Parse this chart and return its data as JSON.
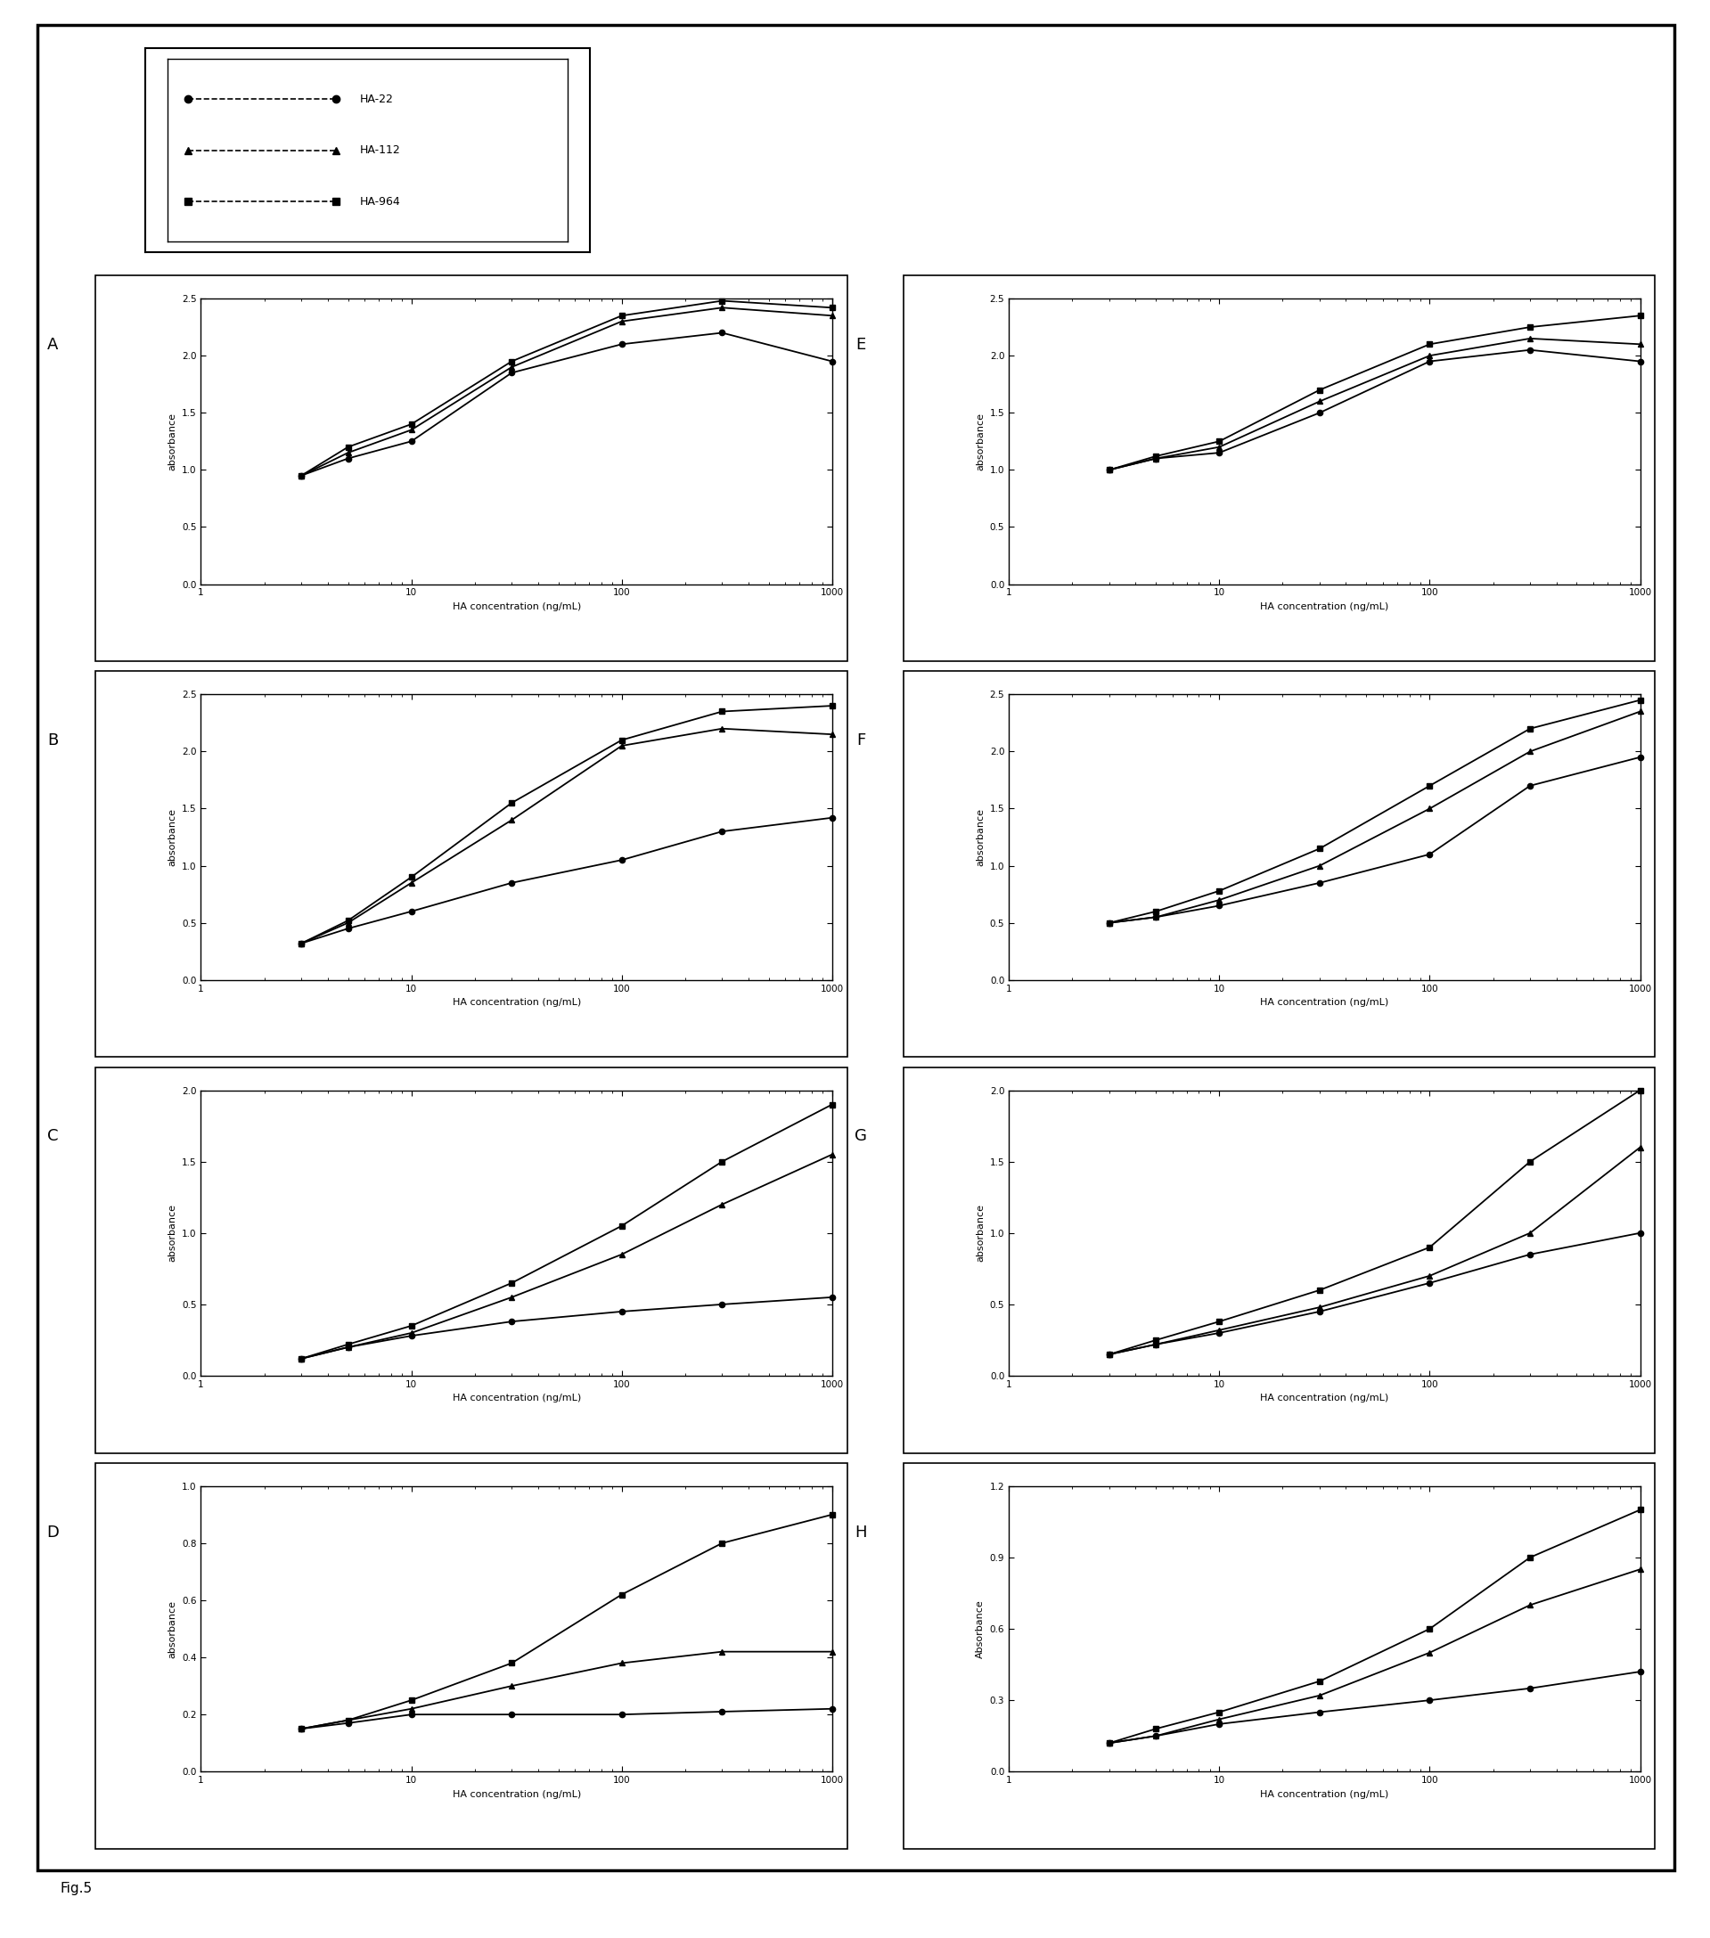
{
  "x": [
    3,
    5,
    10,
    30,
    100,
    300,
    1000
  ],
  "panels": {
    "A": {
      "HA22": [
        0.95,
        1.1,
        1.25,
        1.85,
        2.1,
        2.2,
        1.95
      ],
      "HA112": [
        0.95,
        1.15,
        1.35,
        1.9,
        2.3,
        2.42,
        2.35
      ],
      "HA964": [
        0.95,
        1.2,
        1.4,
        1.95,
        2.35,
        2.48,
        2.42
      ],
      "ylim": [
        0.0,
        2.5
      ],
      "yticks": [
        0.0,
        0.5,
        1.0,
        1.5,
        2.0,
        2.5
      ],
      "ylabel": "absorbance"
    },
    "B": {
      "HA22": [
        0.32,
        0.45,
        0.6,
        0.85,
        1.05,
        1.3,
        1.42
      ],
      "HA112": [
        0.32,
        0.5,
        0.85,
        1.4,
        2.05,
        2.2,
        2.15
      ],
      "HA964": [
        0.32,
        0.52,
        0.9,
        1.55,
        2.1,
        2.35,
        2.4
      ],
      "ylim": [
        0.0,
        2.5
      ],
      "yticks": [
        0.0,
        0.5,
        1.0,
        1.5,
        2.0,
        2.5
      ],
      "ylabel": "absorbance"
    },
    "C": {
      "HA22": [
        0.12,
        0.2,
        0.28,
        0.38,
        0.45,
        0.5,
        0.55
      ],
      "HA112": [
        0.12,
        0.2,
        0.3,
        0.55,
        0.85,
        1.2,
        1.55
      ],
      "HA964": [
        0.12,
        0.22,
        0.35,
        0.65,
        1.05,
        1.5,
        1.9
      ],
      "ylim": [
        0.0,
        2.0
      ],
      "yticks": [
        0.0,
        0.5,
        1.0,
        1.5,
        2.0
      ],
      "ylabel": "absorbance"
    },
    "D": {
      "HA22": [
        0.15,
        0.17,
        0.2,
        0.2,
        0.2,
        0.21,
        0.22
      ],
      "HA112": [
        0.15,
        0.18,
        0.22,
        0.3,
        0.38,
        0.42,
        0.42
      ],
      "HA964": [
        0.15,
        0.18,
        0.25,
        0.38,
        0.62,
        0.8,
        0.9
      ],
      "ylim": [
        0.0,
        1.0
      ],
      "yticks": [
        0.0,
        0.2,
        0.4,
        0.6,
        0.8,
        1.0
      ],
      "ylabel": "absorbance"
    },
    "E": {
      "HA22": [
        1.0,
        1.1,
        1.15,
        1.5,
        1.95,
        2.05,
        1.95
      ],
      "HA112": [
        1.0,
        1.1,
        1.2,
        1.6,
        2.0,
        2.15,
        2.1
      ],
      "HA964": [
        1.0,
        1.12,
        1.25,
        1.7,
        2.1,
        2.25,
        2.35
      ],
      "ylim": [
        0.0,
        2.5
      ],
      "yticks": [
        0.0,
        0.5,
        1.0,
        1.5,
        2.0,
        2.5
      ],
      "ylabel": "absorbance"
    },
    "F": {
      "HA22": [
        0.5,
        0.55,
        0.65,
        0.85,
        1.1,
        1.7,
        1.95
      ],
      "HA112": [
        0.5,
        0.55,
        0.7,
        1.0,
        1.5,
        2.0,
        2.35
      ],
      "HA964": [
        0.5,
        0.6,
        0.78,
        1.15,
        1.7,
        2.2,
        2.45
      ],
      "ylim": [
        0.0,
        2.5
      ],
      "yticks": [
        0.0,
        0.5,
        1.0,
        1.5,
        2.0,
        2.5
      ],
      "ylabel": "absorbance"
    },
    "G": {
      "HA22": [
        0.15,
        0.22,
        0.3,
        0.45,
        0.65,
        0.85,
        1.0
      ],
      "HA112": [
        0.15,
        0.22,
        0.32,
        0.48,
        0.7,
        1.0,
        1.6
      ],
      "HA964": [
        0.15,
        0.25,
        0.38,
        0.6,
        0.9,
        1.5,
        2.0
      ],
      "ylim": [
        0.0,
        2.0
      ],
      "yticks": [
        0.0,
        0.5,
        1.0,
        1.5,
        2.0
      ],
      "ylabel": "absorbance"
    },
    "H": {
      "HA22": [
        0.12,
        0.15,
        0.2,
        0.25,
        0.3,
        0.35,
        0.42
      ],
      "HA112": [
        0.12,
        0.15,
        0.22,
        0.32,
        0.5,
        0.7,
        0.85
      ],
      "HA964": [
        0.12,
        0.18,
        0.25,
        0.38,
        0.6,
        0.9,
        1.1
      ],
      "ylim": [
        0.0,
        1.2
      ],
      "yticks": [
        0.0,
        0.3,
        0.6,
        0.9,
        1.2
      ],
      "ylabel": "Absorbance"
    }
  },
  "xlabel": "HA concentration (ng/mL)",
  "legend_labels": [
    "HA-22",
    "HA-112",
    "HA-964"
  ],
  "fig_caption": "Fig.5",
  "background_color": "#ffffff",
  "panel_labels_left": [
    "A",
    "B",
    "C",
    "D"
  ],
  "panel_labels_right": [
    "E",
    "F",
    "G",
    "H"
  ]
}
